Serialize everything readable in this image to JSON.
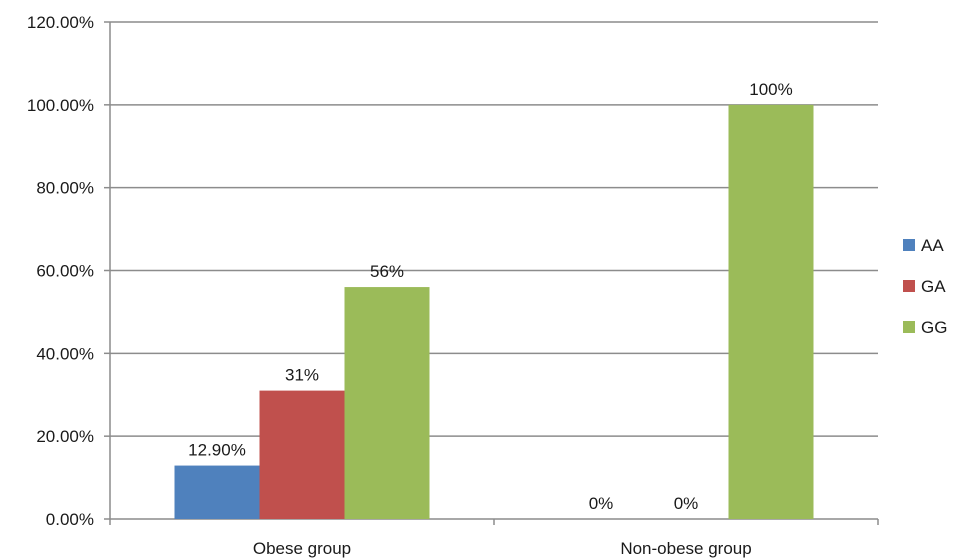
{
  "chart_data": {
    "type": "bar",
    "title": "",
    "xlabel": "",
    "ylabel": "",
    "ylim": [
      0,
      120
    ],
    "y_ticks": [
      {
        "value": 0,
        "label": "0.00%"
      },
      {
        "value": 20,
        "label": "20.00%"
      },
      {
        "value": 40,
        "label": "40.00%"
      },
      {
        "value": 60,
        "label": "60.00%"
      },
      {
        "value": 80,
        "label": "80.00%"
      },
      {
        "value": 100,
        "label": "100.00%"
      },
      {
        "value": 120,
        "label": "120.00%"
      }
    ],
    "grid": true,
    "legend_position": "right",
    "categories": [
      "Obese group",
      "Non-obese group"
    ],
    "series": [
      {
        "name": "AA",
        "color": "#4f81bd",
        "values": [
          12.9,
          0
        ],
        "labels": [
          "12.90%",
          "0%"
        ]
      },
      {
        "name": "GA",
        "color": "#c0504d",
        "values": [
          31,
          0
        ],
        "labels": [
          "31%",
          "0%"
        ]
      },
      {
        "name": "GG",
        "color": "#9bbb59",
        "values": [
          56,
          100
        ],
        "labels": [
          "56%",
          "100%"
        ]
      }
    ]
  }
}
